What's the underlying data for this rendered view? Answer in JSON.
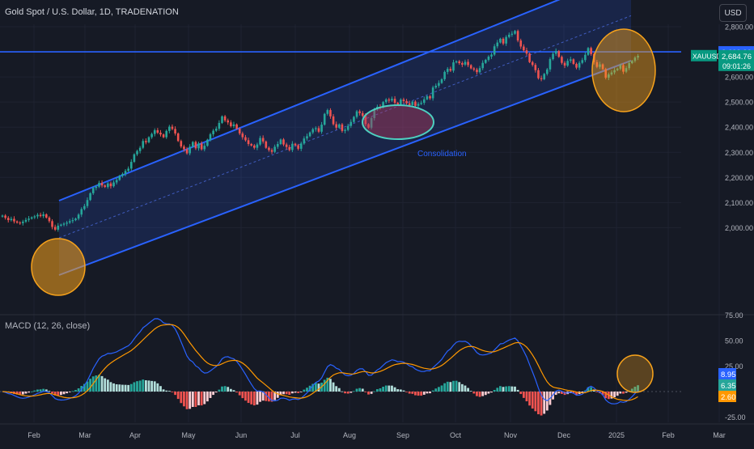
{
  "header": {
    "title": "Gold Spot / U.S. Dollar, 1D, TRADENATION",
    "currency_button": "USD"
  },
  "chart_data": [
    {
      "type": "candlestick",
      "symbol": "XAUUSD",
      "title": "Gold Spot / U.S. Dollar, 1D, TRADENATION",
      "currency": "USD",
      "y_ticks": [
        "2,800.00",
        "2,700.00",
        "2,600.00",
        "2,500.00",
        "2,400.00",
        "2,300.00",
        "2,200.00",
        "2,100.00",
        "2,000.00"
      ],
      "y_tick_values": [
        2800,
        2700,
        2600,
        2500,
        2400,
        2300,
        2200,
        2100,
        2000
      ],
      "ylim": [
        1935,
        2855
      ],
      "x_ticks": [
        "Feb",
        "Mar",
        "Apr",
        "May",
        "Jun",
        "Jul",
        "Aug",
        "Sep",
        "Oct",
        "Nov",
        "Dec",
        "2025",
        "Feb",
        "Mar"
      ],
      "horizontal_line": {
        "value": 2699.99,
        "label": "2,699.99",
        "color": "#2962ff"
      },
      "last_price": {
        "symbol": "XAUUSD",
        "value": 2684.76,
        "label": "2,684.76",
        "countdown": "09:01:26",
        "color": "#089981"
      },
      "annotations": [
        {
          "text": "Consolidation",
          "color": "#2962ff"
        }
      ],
      "colors": {
        "up": "#26a69a",
        "down": "#ef5350",
        "channel": "#2962ff",
        "circle_orange": "#f7a21b",
        "circle_teal": "#4dd0c0"
      },
      "closes": [
        2048,
        2039,
        2030,
        2035,
        2025,
        2020,
        2018,
        2024,
        2031,
        2036,
        2041,
        2045,
        2051,
        2046,
        2053,
        2040,
        2026,
        2003,
        1992,
        2008,
        2012,
        2016,
        2020,
        2026,
        2030,
        2036,
        2052,
        2074,
        2086,
        2110,
        2137,
        2158,
        2163,
        2178,
        2168,
        2162,
        2176,
        2165,
        2180,
        2190,
        2206,
        2214,
        2226,
        2235,
        2262,
        2292,
        2305,
        2318,
        2345,
        2340,
        2360,
        2373,
        2388,
        2378,
        2371,
        2360,
        2385,
        2402,
        2393,
        2375,
        2345,
        2323,
        2312,
        2296,
        2322,
        2341,
        2316,
        2335,
        2312,
        2326,
        2350,
        2372,
        2386,
        2394,
        2417,
        2443,
        2427,
        2419,
        2404,
        2411,
        2394,
        2375,
        2360,
        2348,
        2333,
        2327,
        2318,
        2331,
        2357,
        2343,
        2318,
        2309,
        2302,
        2322,
        2333,
        2351,
        2331,
        2321,
        2309,
        2334,
        2328,
        2314,
        2335,
        2355,
        2364,
        2379,
        2392,
        2396,
        2382,
        2410,
        2453,
        2468,
        2443,
        2412,
        2398,
        2411,
        2385,
        2389,
        2405,
        2421,
        2441,
        2463,
        2456,
        2445,
        2412,
        2398,
        2436,
        2470,
        2481,
        2478,
        2500,
        2510,
        2506,
        2513,
        2497,
        2491,
        2510,
        2504,
        2495,
        2488,
        2502,
        2485,
        2493,
        2497,
        2511,
        2523,
        2515,
        2558,
        2565,
        2576,
        2591,
        2620,
        2632,
        2625,
        2658,
        2662,
        2655,
        2649,
        2660,
        2647,
        2634,
        2629,
        2619,
        2635,
        2656,
        2668,
        2681,
        2689,
        2722,
        2737,
        2752,
        2733,
        2759,
        2768,
        2772,
        2783,
        2745,
        2721,
        2706,
        2693,
        2659,
        2648,
        2627,
        2595,
        2591,
        2612,
        2630,
        2671,
        2692,
        2703,
        2680,
        2656,
        2645,
        2664,
        2670,
        2652,
        2637,
        2656,
        2667,
        2688,
        2715,
        2691,
        2659,
        2640,
        2650,
        2631,
        2597,
        2610,
        2618,
        2627,
        2633,
        2647,
        2621,
        2635,
        2655,
        2664,
        2677,
        2684
      ]
    },
    {
      "type": "line+histogram",
      "title": "MACD (12, 26, close)",
      "y_ticks": [
        "75.00",
        "50.00",
        "25.00",
        "-25.00"
      ],
      "y_tick_values": [
        75,
        50,
        25,
        -25
      ],
      "ylim": [
        -35,
        80
      ],
      "series": [
        {
          "name": "histogram",
          "value": 2.6,
          "label": "2.60",
          "color": "#ff9800"
        },
        {
          "name": "macd",
          "value": 8.95,
          "label": "8.95",
          "color": "#2962ff"
        },
        {
          "name": "signal",
          "value": 6.35,
          "label": "6.35",
          "color": "#26a69a"
        }
      ],
      "x_ticks": [
        "Feb",
        "Mar",
        "Apr",
        "May",
        "Jun",
        "Jul",
        "Aug",
        "Sep",
        "Oct",
        "Nov",
        "Dec",
        "2025",
        "Feb",
        "Mar"
      ]
    }
  ]
}
